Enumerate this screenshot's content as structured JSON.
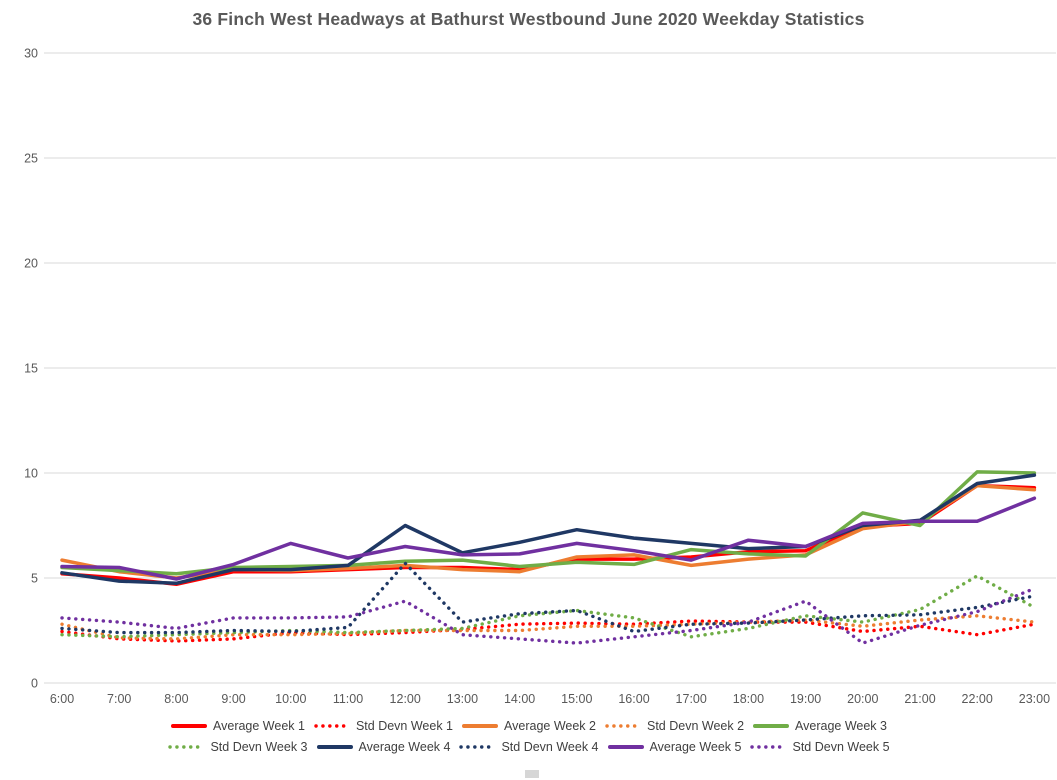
{
  "title": "36 Finch West Headways at Bathurst Westbound June 2020 Weekday Statistics",
  "colors": {
    "background": "#FFFFFF",
    "grid": "#D9D9D9",
    "axis_text": "#595959",
    "title_text": "#595959",
    "legend_text": "#404040",
    "week1": "#FF0000",
    "week2": "#ED7D31",
    "week3": "#70AD47",
    "week4": "#1F3864",
    "week5": "#7030A0"
  },
  "chart_data": {
    "type": "line",
    "title": "36 Finch West Headways at Bathurst Westbound June 2020 Weekday Statistics",
    "xlabel": "",
    "ylabel": "",
    "x": [
      "6:00",
      "7:00",
      "8:00",
      "9:00",
      "10:00",
      "11:00",
      "12:00",
      "13:00",
      "14:00",
      "15:00",
      "16:00",
      "17:00",
      "18:00",
      "19:00",
      "20:00",
      "21:00",
      "22:00",
      "23:00"
    ],
    "ylim": [
      0,
      30
    ],
    "yticks": [
      0,
      5,
      10,
      15,
      20,
      25,
      30
    ],
    "grid": true,
    "legend_position": "bottom-two-rows",
    "series": [
      {
        "name": "Average Week 1",
        "style": "solid",
        "color": "#FF0000",
        "values": [
          5.2,
          5.0,
          4.7,
          5.3,
          5.3,
          5.4,
          5.5,
          5.5,
          5.4,
          5.9,
          5.9,
          6.0,
          6.25,
          6.3,
          7.45,
          7.6,
          9.4,
          9.3
        ]
      },
      {
        "name": "Std Devn Week 1",
        "style": "dotted",
        "color": "#FF0000",
        "values": [
          2.45,
          2.1,
          2.0,
          2.1,
          2.4,
          2.3,
          2.4,
          2.55,
          2.8,
          2.85,
          2.8,
          2.95,
          2.9,
          2.9,
          2.45,
          2.7,
          2.3,
          2.8
        ]
      },
      {
        "name": "Average Week 2",
        "style": "solid",
        "color": "#ED7D31",
        "values": [
          5.85,
          5.3,
          5.0,
          5.4,
          5.35,
          5.45,
          5.6,
          5.4,
          5.3,
          6.0,
          6.1,
          5.6,
          5.9,
          6.1,
          7.35,
          7.7,
          9.4,
          9.2
        ]
      },
      {
        "name": "Std Devn Week 2",
        "style": "dotted",
        "color": "#ED7D31",
        "values": [
          2.8,
          2.15,
          2.1,
          2.3,
          2.3,
          2.35,
          2.5,
          2.5,
          2.5,
          2.7,
          2.7,
          2.8,
          2.9,
          3.0,
          2.7,
          3.0,
          3.2,
          2.9
        ]
      },
      {
        "name": "Average Week 3",
        "style": "solid",
        "color": "#70AD47",
        "values": [
          5.5,
          5.35,
          5.2,
          5.5,
          5.55,
          5.6,
          5.8,
          5.85,
          5.55,
          5.75,
          5.65,
          6.35,
          6.15,
          6.05,
          8.1,
          7.5,
          10.05,
          10.0
        ]
      },
      {
        "name": "Std Devn Week 3",
        "style": "dotted",
        "color": "#70AD47",
        "values": [
          2.3,
          2.2,
          2.3,
          2.4,
          2.5,
          2.4,
          2.5,
          2.6,
          3.2,
          3.45,
          3.1,
          2.2,
          2.6,
          3.2,
          2.9,
          3.5,
          5.1,
          3.6
        ]
      },
      {
        "name": "Average Week 4",
        "style": "solid",
        "color": "#1F3864",
        "values": [
          5.25,
          4.85,
          4.75,
          5.4,
          5.4,
          5.6,
          7.5,
          6.2,
          6.7,
          7.3,
          6.9,
          6.65,
          6.4,
          6.5,
          7.5,
          7.75,
          9.5,
          9.9
        ]
      },
      {
        "name": "Std Devn Week 4",
        "style": "dotted",
        "color": "#1F3864",
        "values": [
          2.6,
          2.4,
          2.4,
          2.5,
          2.45,
          2.65,
          5.7,
          2.9,
          3.3,
          3.45,
          2.45,
          2.8,
          2.85,
          3.0,
          3.2,
          3.25,
          3.6,
          4.15
        ]
      },
      {
        "name": "Average Week 5",
        "style": "solid",
        "color": "#7030A0",
        "values": [
          5.55,
          5.5,
          4.95,
          5.65,
          6.65,
          5.95,
          6.5,
          6.1,
          6.15,
          6.65,
          6.3,
          5.85,
          6.8,
          6.5,
          7.6,
          7.7,
          7.7,
          8.8
        ]
      },
      {
        "name": "Std Devn Week 5",
        "style": "dotted",
        "color": "#7030A0",
        "values": [
          3.1,
          2.9,
          2.6,
          3.1,
          3.1,
          3.15,
          3.9,
          2.3,
          2.1,
          1.9,
          2.2,
          2.5,
          2.9,
          3.9,
          1.9,
          2.75,
          3.4,
          4.5
        ]
      }
    ]
  }
}
